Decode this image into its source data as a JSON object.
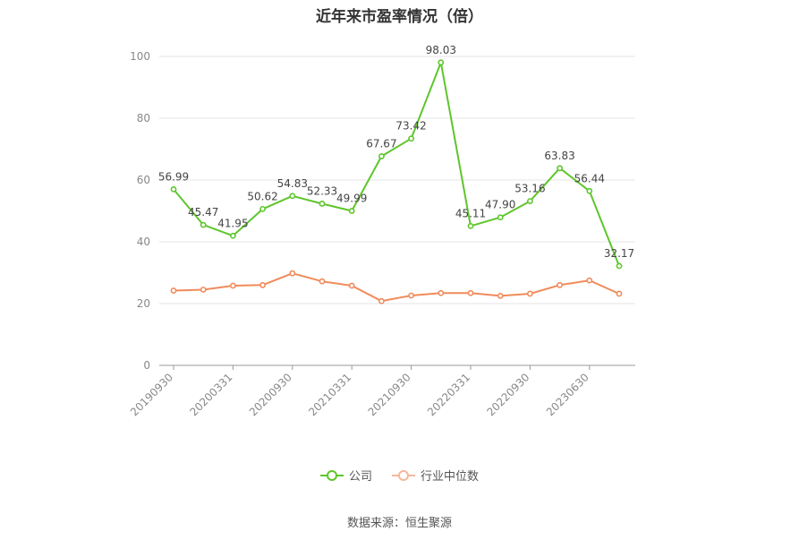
{
  "title": "近年来市盈率情况（倍）",
  "source": "数据来源：恒生聚源",
  "chart_data": {
    "type": "line",
    "title": "近年来市盈率情况（倍）",
    "ylim": [
      0,
      100
    ],
    "yticks": [
      0,
      20,
      40,
      60,
      80,
      100
    ],
    "x_tick_labels": [
      "20190930",
      "20200331",
      "20200930",
      "20210331",
      "20210930",
      "20220331",
      "20220930",
      "20230630"
    ],
    "x_tick_positions": [
      0,
      2,
      4,
      6,
      8,
      10,
      12,
      14
    ],
    "grid": true,
    "legend_position": "bottom",
    "series": [
      {
        "name": "公司",
        "color": "#5ec62b",
        "values": [
          56.99,
          45.47,
          41.95,
          50.62,
          54.83,
          52.33,
          49.99,
          67.67,
          73.42,
          98.03,
          45.11,
          47.9,
          53.16,
          63.83,
          56.44,
          32.17
        ],
        "labels": [
          "56.99",
          "45.47",
          "41.95",
          "50.62",
          "54.83",
          "52.33",
          "49.99",
          "67.67",
          "73.42",
          "98.03",
          "45.11",
          "47.90",
          "53.16",
          "63.83",
          "56.44",
          "32.17"
        ]
      },
      {
        "name": "行业中位数",
        "color": "#f08b5b",
        "values": [
          24.2,
          24.5,
          25.8,
          26.0,
          29.8,
          27.2,
          25.8,
          20.8,
          22.6,
          23.4,
          23.4,
          22.5,
          23.2,
          26.0,
          27.5,
          23.2
        ]
      }
    ]
  },
  "legend": {
    "items": [
      {
        "label": "公司",
        "color": "#5ec62b"
      },
      {
        "label": "行业中位数",
        "color": "#f4b79c"
      }
    ]
  }
}
